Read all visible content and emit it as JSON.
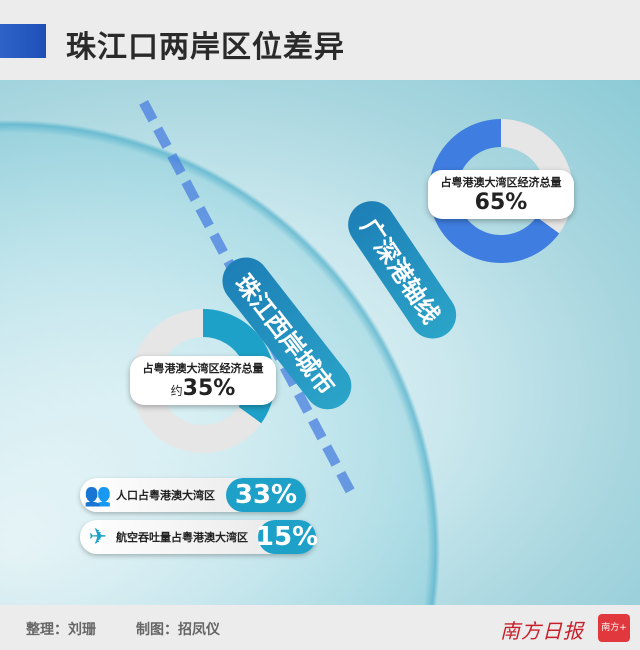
{
  "title": "珠江口两岸区位差异",
  "map": {
    "corridor_label": "广深港轴线",
    "west_label": "珠江西岸城市"
  },
  "east_donut": {
    "label": "占粤港澳大湾区经济总量",
    "value": "65%",
    "share": 0.65
  },
  "west_donut": {
    "label": "占粤港澳大湾区经济总量",
    "prefix": "约",
    "value": "35%",
    "share": 0.35
  },
  "stats": [
    {
      "icon": "people-icon",
      "label": "人口占粤港澳大湾区",
      "value": "33%"
    },
    {
      "icon": "airplane-icon",
      "label": "航空吞吐量占粤港澳大湾区",
      "value": "15%"
    }
  ],
  "colors": {
    "accent": "#3f7de0",
    "teal": "#1ea1c8",
    "grey": "#e6e6e6"
  },
  "footer": {
    "editor": "整理：刘珊",
    "designer": "制图：招凤仪",
    "logo": "南方日报",
    "logo_badge": "南方+"
  }
}
